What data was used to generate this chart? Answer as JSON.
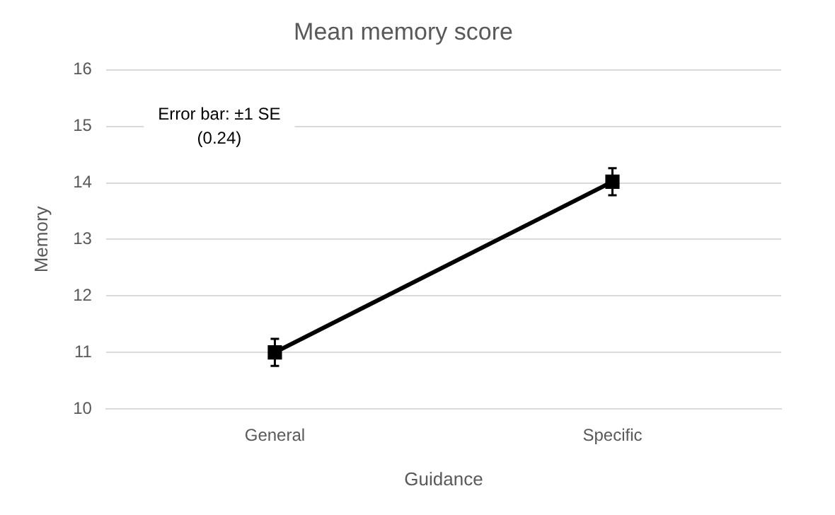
{
  "chart_data": {
    "type": "line",
    "title": "Mean memory score",
    "xlabel": "Guidance",
    "ylabel": "Memory",
    "categories": [
      "General",
      "Specific"
    ],
    "series": [
      {
        "color": "#000000",
        "values": [
          11,
          14.02
        ],
        "errors": [
          0.24,
          0.24
        ]
      }
    ],
    "ylim": [
      10,
      16
    ],
    "yticks": [
      10,
      11,
      12,
      13,
      14,
      15,
      16
    ],
    "grid": "y",
    "marker": "square",
    "line_style": "solid",
    "legend": false,
    "annotations": [
      "Error bar: ±1 SE\n(0.24)"
    ]
  }
}
